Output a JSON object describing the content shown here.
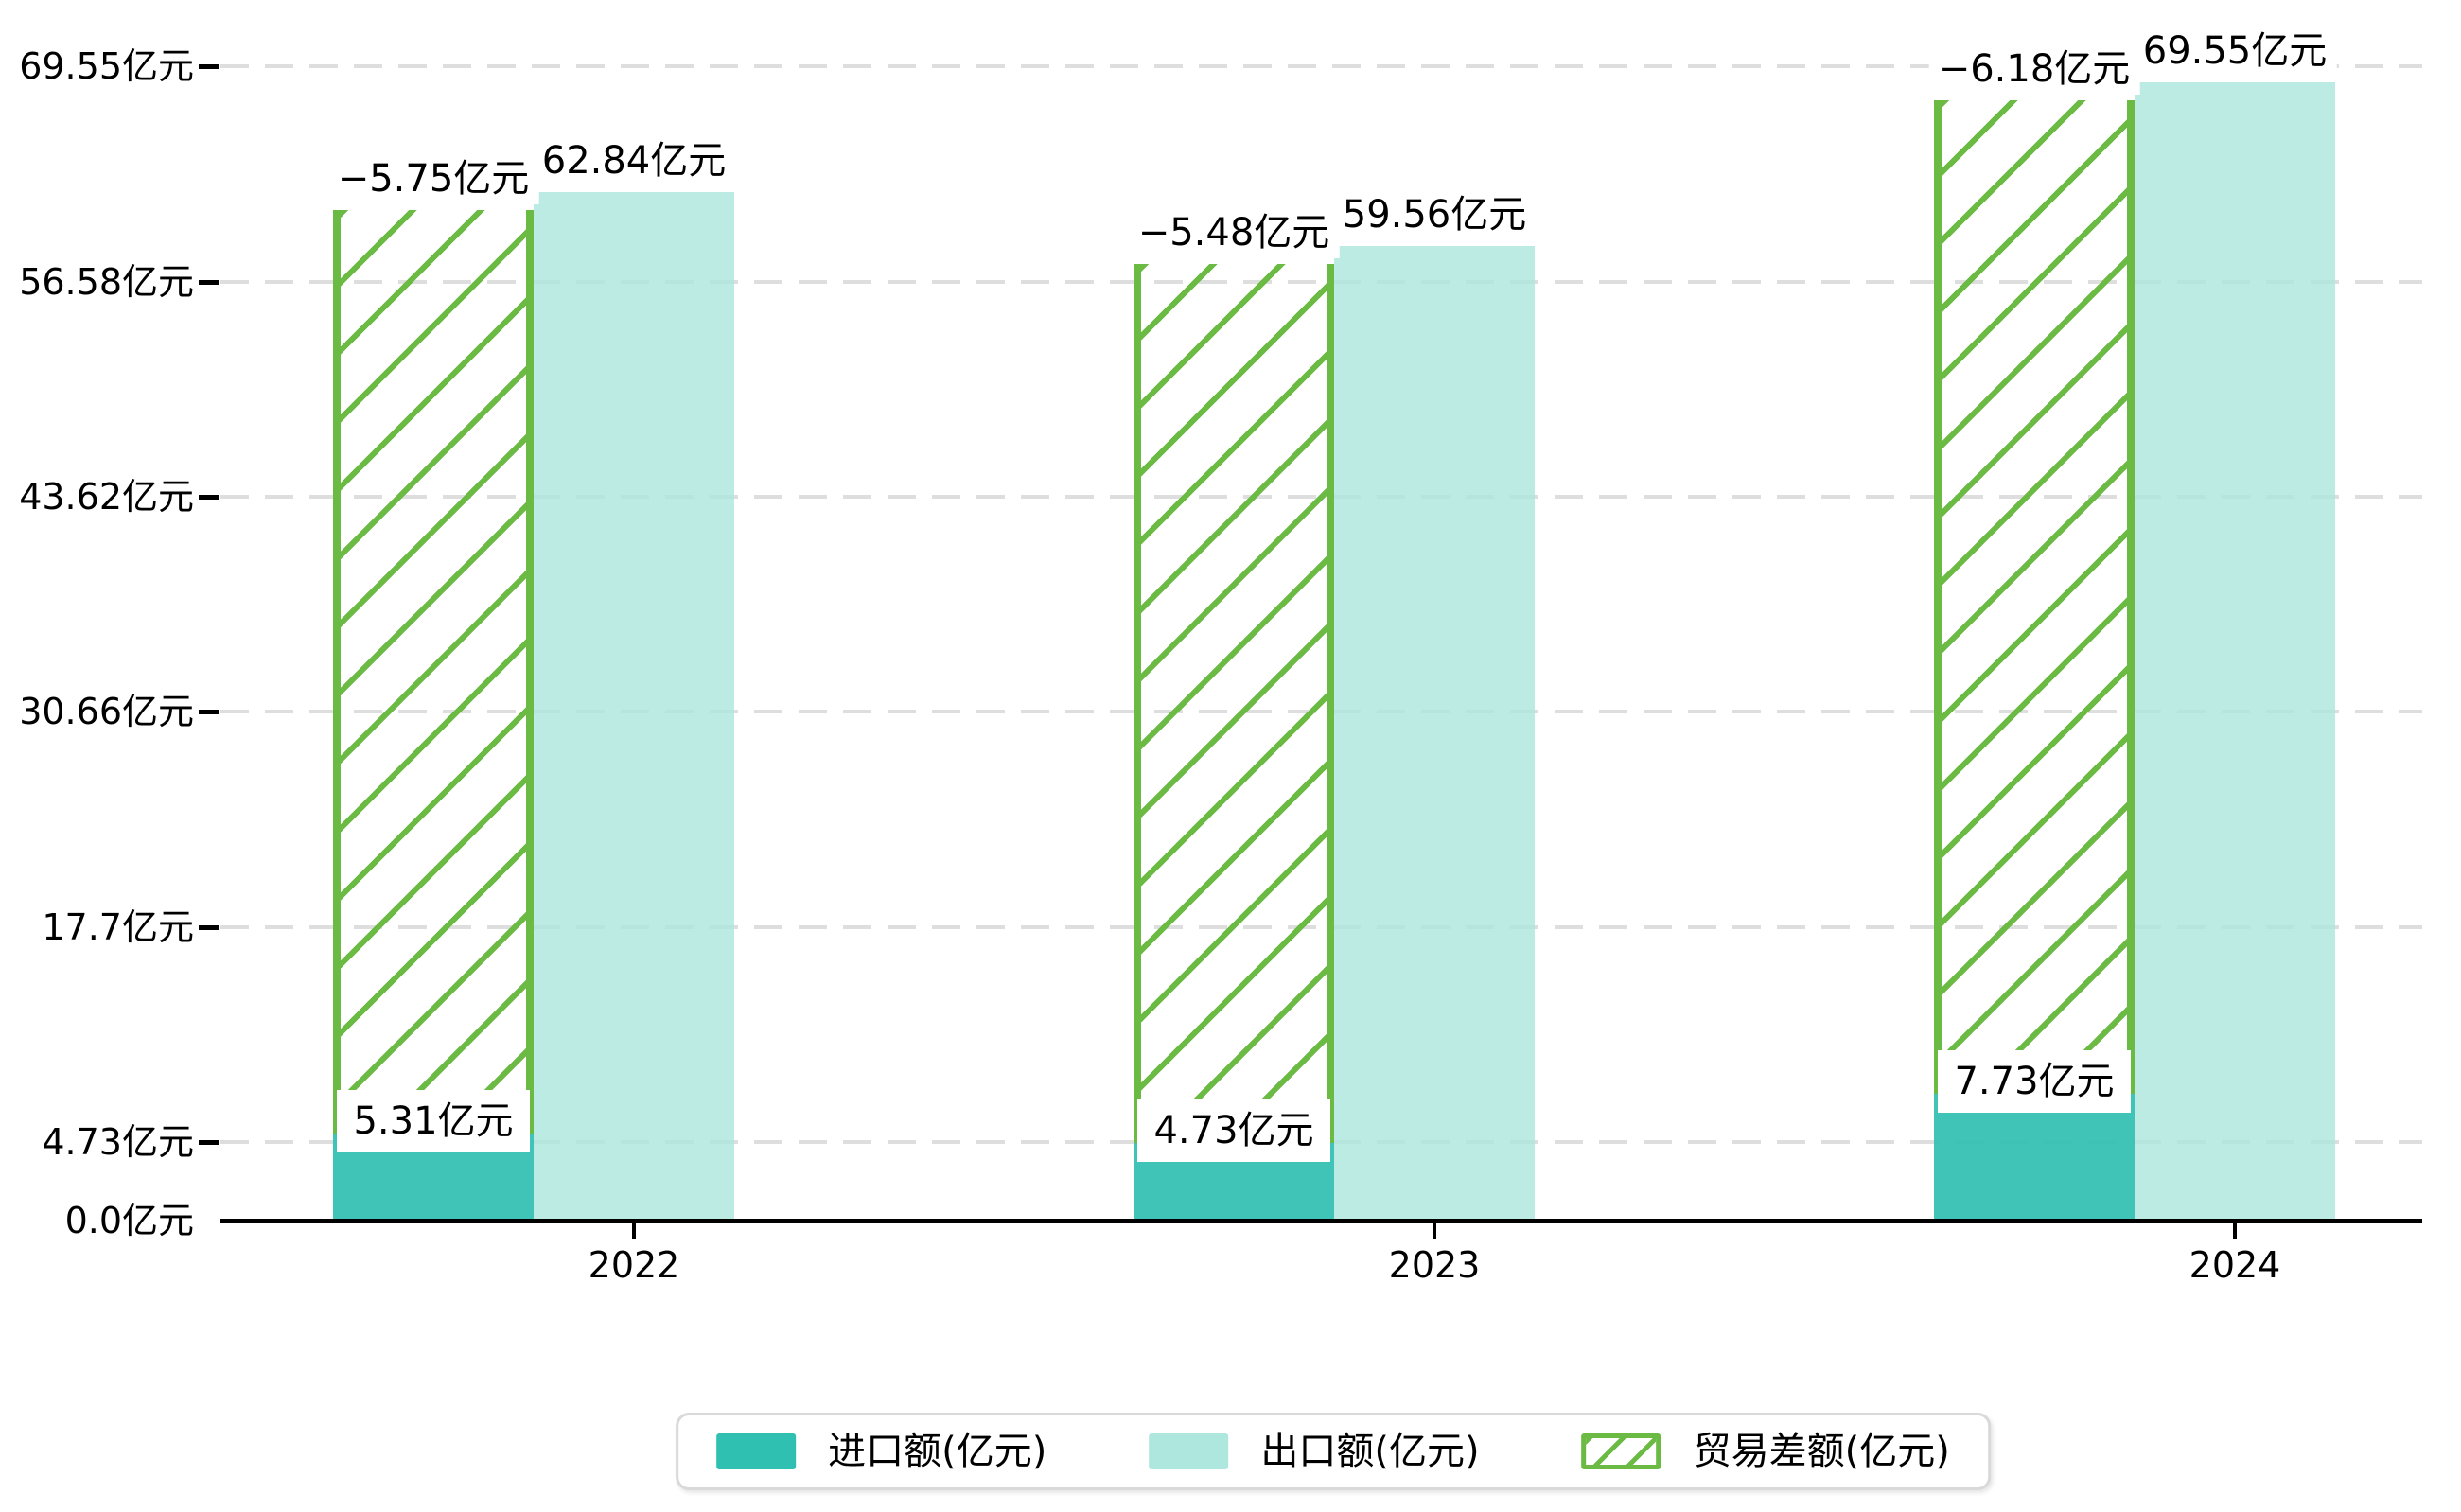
{
  "chart_data": {
    "type": "bar",
    "categories": [
      "2022",
      "2023",
      "2024"
    ],
    "series": [
      {
        "name": "进口额(亿元)",
        "values": [
          5.31,
          4.73,
          7.73
        ],
        "color": "#30c0b2",
        "pattern": "solid"
      },
      {
        "name": "出口额(亿元)",
        "values": [
          62.84,
          59.56,
          69.55
        ],
        "color": "#ade7de",
        "pattern": "solid"
      },
      {
        "name": "贸易差额(亿元)",
        "values": [
          -5.75,
          -5.48,
          -6.18
        ],
        "color": "#6aba44",
        "pattern": "diagonal-hatch"
      }
    ],
    "data_labels": {
      "import": [
        "5.31亿元",
        "4.73亿元",
        "7.73亿元"
      ],
      "export": [
        "62.84亿元",
        "59.56亿元",
        "69.55亿元"
      ],
      "balance": [
        "−5.75亿元",
        "−5.48亿元",
        "−6.18亿元"
      ]
    },
    "y_axis": {
      "tick_labels": [
        "0.0亿元",
        "4.73亿元",
        "17.7亿元",
        "30.66亿元",
        "43.62亿元",
        "56.58亿元",
        "69.55亿元"
      ],
      "tick_values": [
        0,
        4.73,
        17.7,
        30.66,
        43.62,
        56.58,
        69.55
      ],
      "range": [
        0,
        69.55
      ]
    },
    "x_axis": {
      "tick_labels": [
        "2022",
        "2023",
        "2024"
      ]
    },
    "legend": {
      "position": "bottom",
      "entries": [
        "进口额(亿元)",
        "出口额(亿元)",
        "贸易差额(亿元)"
      ]
    },
    "grid": {
      "horizontal": true,
      "style": "dashed"
    },
    "hatch_bar_span": "hatched trade-balance bar is drawn stacked from the import value up to the export value"
  },
  "colors": {
    "import": "#30c0b2",
    "export": "#ade7de",
    "balance_green": "#6aba44",
    "gridline": "#dedede",
    "axis": "#000000",
    "text": "#000000",
    "label_bg": "#ffffff",
    "legend_border": "#d9d9d9"
  }
}
